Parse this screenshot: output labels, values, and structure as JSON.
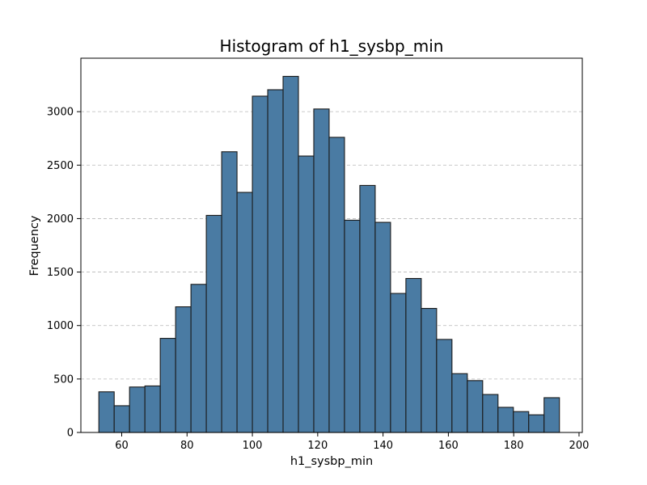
{
  "chart_data": {
    "type": "bar",
    "title": "Histogram of h1_sysbp_min",
    "xlabel": "h1_sysbp_min",
    "ylabel": "Frequency",
    "bin_start": 53,
    "bin_width": 4.7,
    "values": [
      380,
      250,
      425,
      435,
      880,
      1175,
      1385,
      2030,
      2625,
      2245,
      3145,
      3205,
      3330,
      2585,
      3025,
      2760,
      1985,
      2310,
      1965,
      1300,
      1440,
      1160,
      870,
      550,
      485,
      355,
      235,
      195,
      165,
      325
    ],
    "xlim": [
      47.5,
      201
    ],
    "ylim": [
      0,
      3500
    ],
    "xticks": [
      60,
      80,
      100,
      120,
      140,
      160,
      180,
      200
    ],
    "yticks": [
      0,
      500,
      1000,
      1500,
      2000,
      2500,
      3000
    ],
    "grid": "y-dashed",
    "colors": {
      "bar": "#4a7ba3",
      "edge": "#1a1a1a",
      "grid": "#b8b8b8"
    }
  }
}
